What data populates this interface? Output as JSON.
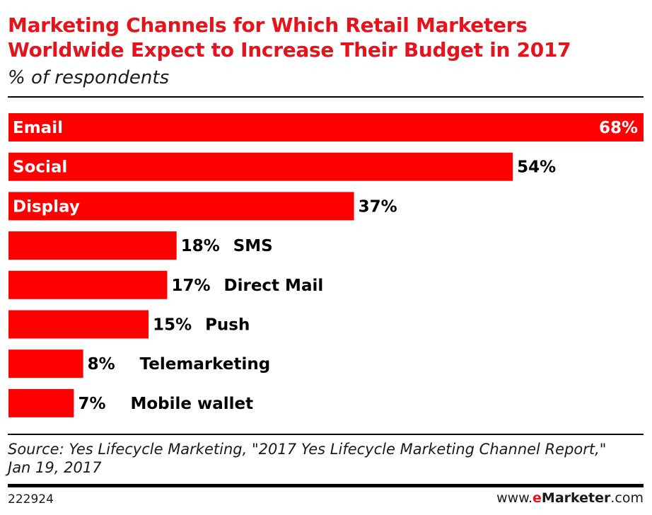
{
  "chart_data": {
    "type": "bar",
    "orientation": "horizontal",
    "title": "Marketing Channels for Which Retail Marketers Worldwide Expect to Increase Their Budget in 2017",
    "subtitle": "% of respondents",
    "categories": [
      "Email",
      "Social",
      "Display",
      "SMS",
      "Direct Mail",
      "Push",
      "Telemarketing",
      "Mobile wallet"
    ],
    "values": [
      68,
      54,
      37,
      18,
      17,
      15,
      8,
      7
    ],
    "value_labels": [
      "68%",
      "54%",
      "37%",
      "18%",
      "17%",
      "15%",
      "8%",
      "7%"
    ],
    "xlim": [
      0,
      68
    ],
    "grid": false,
    "bar_color": "#ff0000"
  },
  "footer": {
    "source": "Source: Yes Lifecycle Marketing, \"2017 Yes Lifecycle Marketing Channel Report,\" Jan 19, 2017",
    "chart_id": "222924",
    "brand_prefix": "www.",
    "brand_accent": "e",
    "brand_name": "Marketer",
    "brand_suffix": ".com"
  },
  "colors": {
    "title": "#e4131c",
    "bar": "#ff0000",
    "rule": "#000000"
  }
}
